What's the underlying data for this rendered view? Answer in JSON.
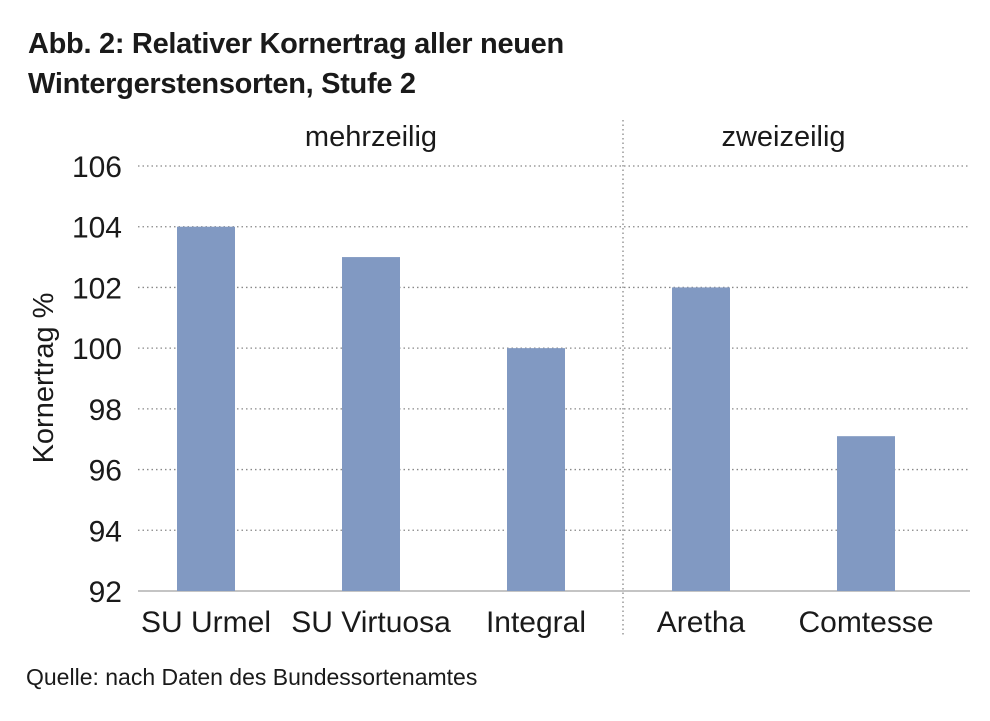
{
  "title_line1": "Abb. 2: Relativer Kornertrag aller neuen",
  "title_line2": "Wintergerstensorten, Stufe 2",
  "source": "Quelle: nach Daten des Bundessortenamtes",
  "chart_data": {
    "type": "bar",
    "title": "Abb. 2: Relativer Kornertrag aller neuen Wintergerstensorten, Stufe 2",
    "xlabel": "",
    "ylabel": "Kornertrag %",
    "ylim": [
      92,
      106
    ],
    "yticks": [
      92,
      94,
      96,
      98,
      100,
      102,
      104,
      106
    ],
    "grid": true,
    "groups": [
      {
        "label": "mehrzeilig",
        "categories": [
          "SU Urmel",
          "SU Virtuosa",
          "Integral"
        ]
      },
      {
        "label": "zweizeilig",
        "categories": [
          "Aretha",
          "Comtesse"
        ]
      }
    ],
    "categories": [
      "SU Urmel",
      "SU Virtuosa",
      "Integral",
      "Aretha",
      "Comtesse"
    ],
    "values": [
      104,
      103,
      100,
      102,
      97.1
    ],
    "bar_color": "#8199c2"
  }
}
